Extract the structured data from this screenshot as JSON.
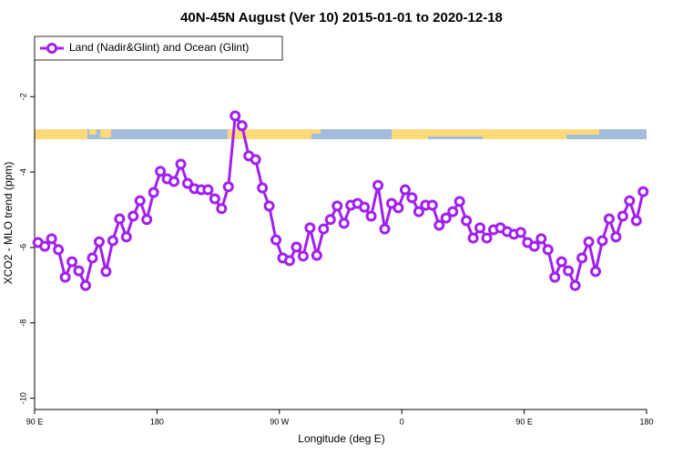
{
  "chart_data": {
    "type": "line",
    "title": "40N-45N August (Ver 10)   2015-01-01 to 2020-12-18",
    "x_label": "Longitude (deg E)",
    "y_label": "XCO2 - MLO trend (ppm)",
    "x": [
      92.5,
      97.5,
      102.5,
      107.5,
      112.5,
      117.5,
      122.5,
      127.5,
      132.5,
      137.5,
      142.5,
      147.5,
      152.5,
      157.5,
      162.5,
      167.5,
      172.5,
      177.5,
      182.5,
      187.5,
      192.5,
      197.5,
      202.5,
      207.5,
      212.5,
      217.5,
      222.5,
      227.5,
      232.5,
      237.5,
      242.5,
      247.5,
      252.5,
      257.5,
      262.5,
      267.5,
      272.5,
      277.5,
      282.5,
      287.5,
      292.5,
      297.5,
      302.5,
      307.5,
      312.5,
      317.5,
      322.5,
      327.5,
      332.5,
      337.5,
      342.5,
      347.5,
      352.5,
      357.5,
      362.5,
      367.5,
      372.5,
      377.5,
      382.5,
      387.5,
      392.5,
      397.5,
      402.5,
      407.5,
      412.5,
      417.5,
      422.5,
      427.5,
      432.5,
      437.5,
      442.5,
      447.5,
      452.5,
      457.5,
      462.5,
      467.5,
      472.5,
      477.5,
      482.5,
      487.5,
      492.5,
      497.5,
      502.5,
      507.5,
      512.5,
      517.5,
      522.5,
      527.5,
      532.5,
      537.5
    ],
    "series": [
      {
        "name": "Land (Nadir&Glint) and Ocean (Glint)",
        "color": "#a020f0",
        "values": [
          -5.87,
          -5.97,
          -5.77,
          -6.06,
          -6.79,
          -6.38,
          -6.62,
          -7.01,
          -6.28,
          -5.85,
          -6.64,
          -5.82,
          -5.24,
          -5.72,
          -5.17,
          -4.76,
          -5.26,
          -4.54,
          -3.98,
          -4.18,
          -4.25,
          -3.79,
          -4.3,
          -4.44,
          -4.47,
          -4.47,
          -4.71,
          -4.97,
          -4.39,
          -2.51,
          -2.77,
          -3.57,
          -3.67,
          -4.42,
          -4.9,
          -5.8,
          -6.28,
          -6.35,
          -5.99,
          -6.23,
          -5.48,
          -6.21,
          -5.51,
          -5.26,
          -4.9,
          -5.36,
          -4.88,
          -4.83,
          -4.93,
          -5.17,
          -4.35,
          -5.51,
          -4.83,
          -4.95,
          -4.47,
          -4.68,
          -5.05,
          -4.88,
          -4.88,
          -5.41,
          -5.22,
          -5.05,
          -4.78,
          -5.29,
          -5.75,
          -5.48,
          -5.75,
          -5.53,
          -5.48,
          -5.58,
          -5.65,
          -5.6,
          -5.87,
          -5.97,
          -5.77,
          -6.06,
          -6.79,
          -6.38,
          -6.62,
          -7.01,
          -6.28,
          -5.85,
          -6.64,
          -5.82,
          -5.24,
          -5.72,
          -5.17,
          -4.76,
          -5.29,
          -4.52
        ]
      }
    ],
    "xlim": [
      90,
      540
    ],
    "xticks": [
      {
        "value": 90,
        "label": "90 E"
      },
      {
        "value": 180,
        "label": "180"
      },
      {
        "value": 270,
        "label": "90 W"
      },
      {
        "value": 360,
        "label": "0"
      },
      {
        "value": 450,
        "label": "90 E"
      },
      {
        "value": 540,
        "label": "180"
      }
    ],
    "ylim": [
      -10.3,
      -0.4
    ],
    "yticks": [
      -2,
      -4,
      -6,
      -8,
      -10
    ],
    "legend": "top-left"
  }
}
